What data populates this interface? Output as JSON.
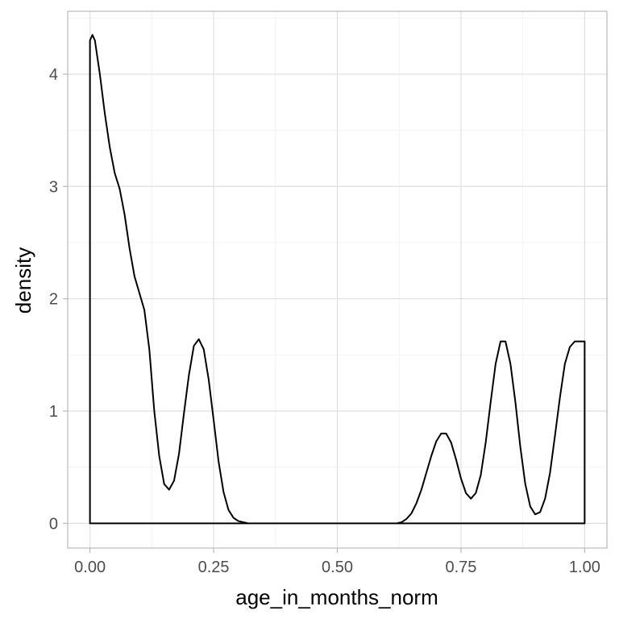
{
  "chart_data": {
    "type": "area",
    "title": "",
    "xlabel": "age_in_months_norm",
    "ylabel": "density",
    "xlim": [
      -0.045,
      1.045
    ],
    "ylim": [
      -0.22,
      4.56
    ],
    "x_ticks": [
      0.0,
      0.25,
      0.5,
      0.75,
      1.0
    ],
    "x_tick_labels": [
      "0.00",
      "0.25",
      "0.50",
      "0.75",
      "1.00"
    ],
    "y_ticks": [
      0,
      1,
      2,
      3,
      4
    ],
    "y_tick_labels": [
      "0",
      "1",
      "2",
      "3",
      "4"
    ],
    "grid": true,
    "legend": "none",
    "series": [
      {
        "x": [
          0.0,
          0.005,
          0.01,
          0.02,
          0.03,
          0.04,
          0.05,
          0.06,
          0.07,
          0.08,
          0.09,
          0.1,
          0.11,
          0.12,
          0.13,
          0.14,
          0.15,
          0.16,
          0.17,
          0.18,
          0.19,
          0.2,
          0.21,
          0.22,
          0.23,
          0.24,
          0.25,
          0.26,
          0.27,
          0.28,
          0.29,
          0.3,
          0.31,
          0.32,
          0.33,
          0.35,
          0.38,
          0.5,
          0.6,
          0.62,
          0.63,
          0.64,
          0.65,
          0.66,
          0.67,
          0.68,
          0.69,
          0.7,
          0.71,
          0.72,
          0.73,
          0.74,
          0.75,
          0.76,
          0.77,
          0.78,
          0.79,
          0.8,
          0.81,
          0.82,
          0.83,
          0.84,
          0.85,
          0.86,
          0.87,
          0.88,
          0.89,
          0.9,
          0.91,
          0.92,
          0.93,
          0.94,
          0.95,
          0.96,
          0.97,
          0.98,
          0.99,
          0.995,
          1.0
        ],
        "y": [
          4.3,
          4.35,
          4.3,
          4.0,
          3.65,
          3.35,
          3.12,
          2.98,
          2.75,
          2.45,
          2.2,
          2.05,
          1.9,
          1.55,
          1.0,
          0.6,
          0.35,
          0.3,
          0.38,
          0.62,
          0.98,
          1.32,
          1.58,
          1.64,
          1.55,
          1.28,
          0.92,
          0.55,
          0.28,
          0.12,
          0.05,
          0.02,
          0.01,
          0.0,
          0.0,
          0.0,
          0.0,
          0.0,
          0.0,
          0.0,
          0.01,
          0.04,
          0.09,
          0.18,
          0.3,
          0.45,
          0.6,
          0.73,
          0.8,
          0.8,
          0.72,
          0.57,
          0.4,
          0.27,
          0.22,
          0.27,
          0.43,
          0.72,
          1.08,
          1.42,
          1.62,
          1.62,
          1.42,
          1.08,
          0.68,
          0.35,
          0.15,
          0.08,
          0.1,
          0.22,
          0.45,
          0.78,
          1.12,
          1.42,
          1.57,
          1.62,
          1.62,
          1.62,
          1.62
        ]
      }
    ]
  }
}
